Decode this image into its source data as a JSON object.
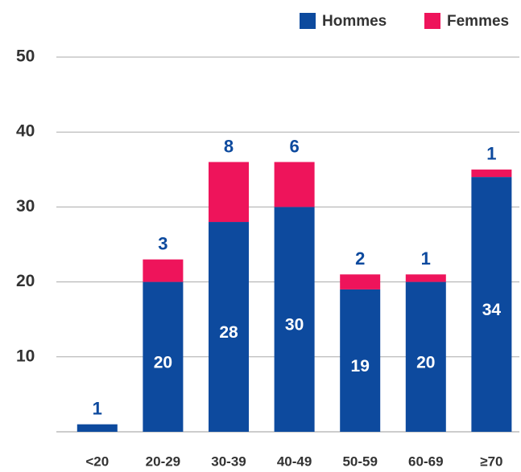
{
  "chart_data": {
    "type": "stacked_bar",
    "categories": [
      "<20",
      "20-29",
      "30-39",
      "40-49",
      "50-59",
      "60-69",
      "≥70"
    ],
    "series": [
      {
        "name": "Hommes",
        "color": "#0d4a9e",
        "values": [
          1,
          20,
          28,
          30,
          19,
          20,
          34
        ]
      },
      {
        "name": "Femmes",
        "color": "#ee145b",
        "values": [
          null,
          3,
          8,
          6,
          2,
          1,
          1
        ]
      }
    ],
    "ylim": [
      0,
      50
    ],
    "yticks": [
      10,
      20,
      30,
      40,
      50
    ],
    "grid": true,
    "legend": "top-right"
  }
}
